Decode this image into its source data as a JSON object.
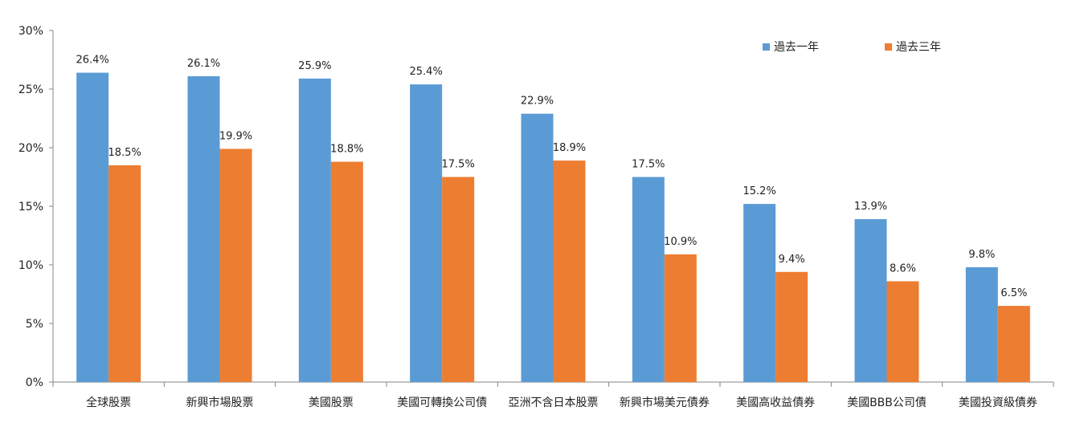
{
  "chart_data": {
    "type": "bar",
    "categories": [
      "全球股票",
      "新興市場股票",
      "美國股票",
      "美國可轉換公司債",
      "亞洲不含日本股票",
      "新興市場美元債券",
      "美國高收益債券",
      "美國BBB公司債",
      "美國投資級債券"
    ],
    "series": [
      {
        "name": "過去一年",
        "color": "#5B9BD5",
        "values": [
          26.4,
          26.1,
          25.9,
          25.4,
          22.9,
          17.5,
          15.2,
          13.9,
          9.8
        ]
      },
      {
        "name": "過去三年",
        "color": "#ED7D31",
        "values": [
          18.5,
          19.9,
          18.8,
          17.5,
          18.9,
          10.9,
          9.4,
          8.6,
          6.5
        ]
      }
    ],
    "ylim": [
      0,
      30
    ],
    "yticks": [
      0,
      5,
      10,
      15,
      20,
      25,
      30
    ],
    "value_suffix": "%",
    "title": "",
    "xlabel": "",
    "ylabel": "",
    "grid": false,
    "legend_position": "top-right"
  }
}
